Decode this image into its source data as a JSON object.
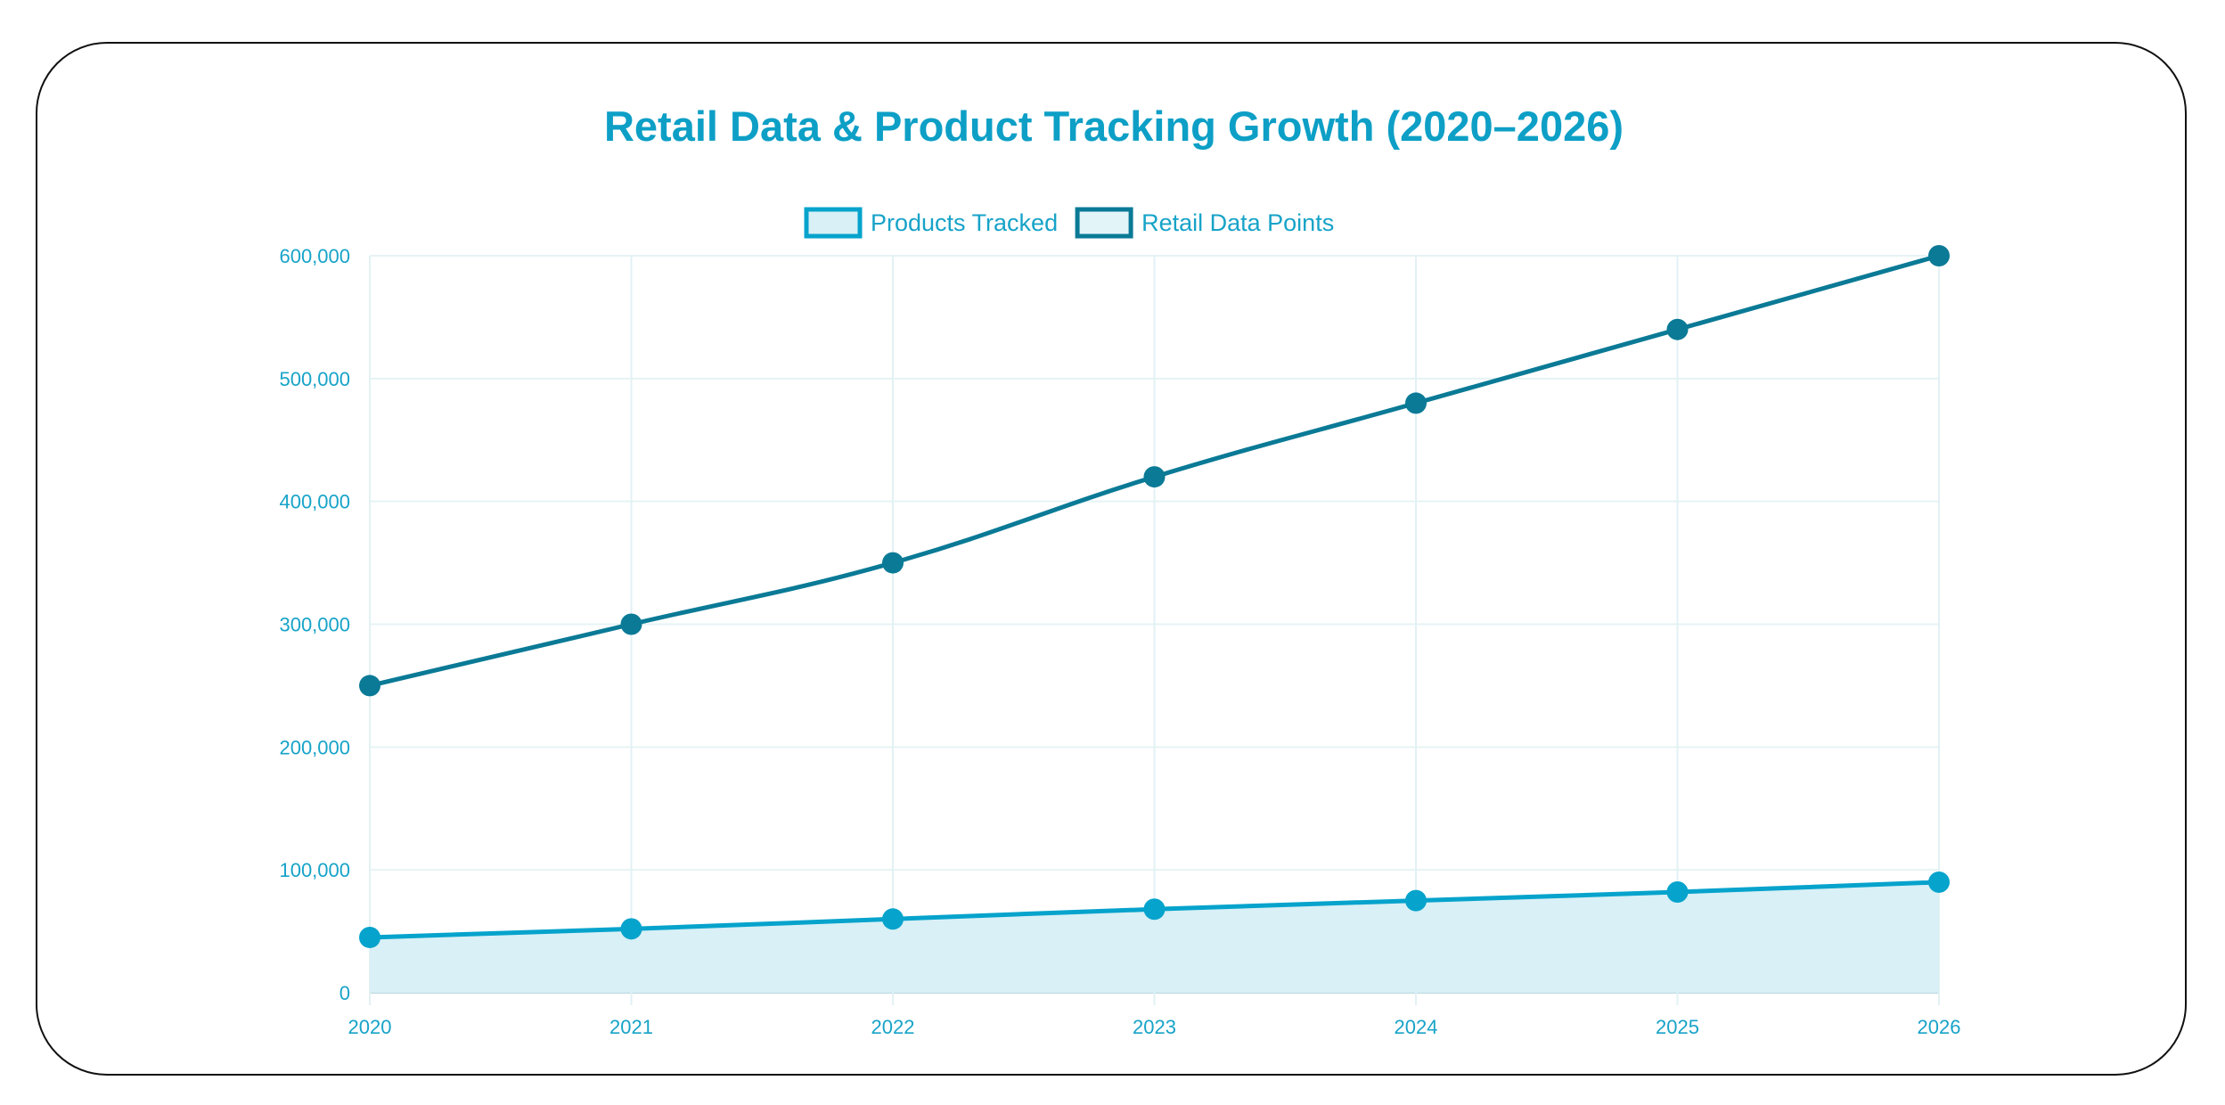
{
  "chart_data": {
    "type": "line",
    "title": "Retail Data & Product Tracking Growth (2020–2026)",
    "xlabel": "",
    "ylabel": "",
    "categories": [
      "2020",
      "2021",
      "2022",
      "2023",
      "2024",
      "2025",
      "2026"
    ],
    "ylim": [
      0,
      600000
    ],
    "yticks": [
      0,
      100000,
      200000,
      300000,
      400000,
      500000,
      600000
    ],
    "ytick_labels": [
      "0",
      "100,000",
      "200,000",
      "300,000",
      "400,000",
      "500,000",
      "600,000"
    ],
    "grid": true,
    "legend_position": "top",
    "series": [
      {
        "name": "Products Tracked",
        "values": [
          45000,
          52000,
          60000,
          68000,
          75000,
          82000,
          90000
        ],
        "color": "#06a3cc",
        "fill": "#d8f0f6",
        "filled": true
      },
      {
        "name": "Retail Data Points",
        "values": [
          250000,
          300000,
          350000,
          420000,
          480000,
          540000,
          600000
        ],
        "color": "#0a7a96",
        "fill": "#e3f4f9",
        "filled": false
      }
    ]
  }
}
